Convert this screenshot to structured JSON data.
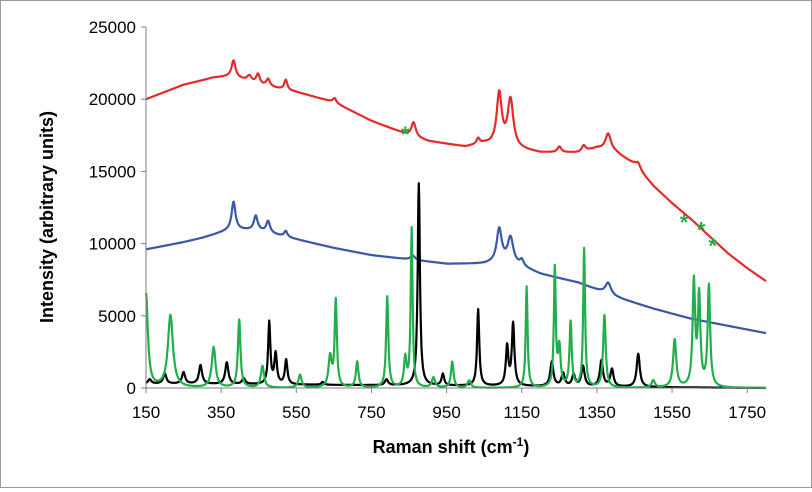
{
  "chart_data": {
    "type": "line",
    "xlabel": "Raman shift (cm",
    "xlabel_sup": "-1",
    "xlabel_end": ")",
    "ylabel": "Intensity (arbitrary units)",
    "xlim": [
      150,
      1800
    ],
    "ylim": [
      0,
      25000
    ],
    "grid": false,
    "legend": "none",
    "x_ticks": [
      150,
      350,
      550,
      750,
      950,
      1150,
      1350,
      1550,
      1750
    ],
    "x_tick_labels": [
      "150",
      "350",
      "550",
      "750",
      "950",
      "1150",
      "1350",
      "1550",
      "1750"
    ],
    "y_ticks": [
      0,
      5000,
      10000,
      15000,
      20000,
      25000
    ],
    "y_tick_labels": [
      "0",
      "5000",
      "10000",
      "15000",
      "20000",
      "25000"
    ],
    "series": [
      {
        "color": "#e32b2b",
        "baseline": [
          [
            150,
            20000
          ],
          [
            250,
            21000
          ],
          [
            330,
            21500
          ],
          [
            380,
            21600
          ],
          [
            450,
            21000
          ],
          [
            550,
            20500
          ],
          [
            650,
            19800
          ],
          [
            750,
            18500
          ],
          [
            850,
            17500
          ],
          [
            900,
            17100
          ],
          [
            950,
            16900
          ],
          [
            1000,
            16700
          ],
          [
            1050,
            16900
          ],
          [
            1150,
            16500
          ],
          [
            1200,
            16300
          ],
          [
            1300,
            16300
          ],
          [
            1350,
            16600
          ],
          [
            1400,
            16300
          ],
          [
            1450,
            15500
          ],
          [
            1500,
            14000
          ],
          [
            1550,
            12800
          ],
          [
            1600,
            11700
          ],
          [
            1650,
            10500
          ],
          [
            1700,
            9300
          ],
          [
            1750,
            8300
          ],
          [
            1800,
            7400
          ]
        ],
        "peaks": [
          [
            383,
            1100,
            6
          ],
          [
            425,
            400,
            7
          ],
          [
            448,
            700,
            6
          ],
          [
            475,
            500,
            6
          ],
          [
            522,
            700,
            5
          ],
          [
            652,
            300,
            5
          ],
          [
            862,
            1000,
            7
          ],
          [
            1034,
            400,
            5
          ],
          [
            1090,
            3600,
            8
          ],
          [
            1120,
            3300,
            9
          ],
          [
            1250,
            400,
            6
          ],
          [
            1315,
            400,
            6
          ],
          [
            1380,
            1200,
            9
          ],
          [
            1460,
            400,
            7
          ]
        ]
      },
      {
        "color": "#3a57a8",
        "baseline": [
          [
            150,
            9600
          ],
          [
            250,
            10100
          ],
          [
            300,
            10400
          ],
          [
            380,
            11000
          ],
          [
            450,
            10900
          ],
          [
            550,
            10300
          ],
          [
            650,
            9700
          ],
          [
            750,
            9200
          ],
          [
            850,
            8900
          ],
          [
            950,
            8600
          ],
          [
            1050,
            8600
          ],
          [
            1100,
            8700
          ],
          [
            1150,
            8400
          ],
          [
            1200,
            7900
          ],
          [
            1300,
            7300
          ],
          [
            1400,
            6300
          ],
          [
            1500,
            5500
          ],
          [
            1600,
            4800
          ],
          [
            1700,
            4300
          ],
          [
            1800,
            3800
          ]
        ],
        "peaks": [
          [
            383,
            1900,
            6
          ],
          [
            442,
            1000,
            6
          ],
          [
            475,
            800,
            6
          ],
          [
            522,
            400,
            5
          ],
          [
            860,
            300,
            7
          ],
          [
            1090,
            2300,
            8
          ],
          [
            1120,
            1800,
            9
          ],
          [
            1150,
            400,
            6
          ],
          [
            1380,
            800,
            9
          ]
        ]
      },
      {
        "color": "#000000",
        "baseline": [
          [
            150,
            300
          ],
          [
            1800,
            0
          ]
        ],
        "peaks": [
          [
            160,
            300,
            5
          ],
          [
            200,
            700,
            5
          ],
          [
            250,
            800,
            5
          ],
          [
            295,
            1300,
            5
          ],
          [
            365,
            1500,
            5
          ],
          [
            410,
            400,
            5
          ],
          [
            478,
            4300,
            3.5
          ],
          [
            495,
            2100,
            4
          ],
          [
            523,
            1700,
            4
          ],
          [
            620,
            200,
            4
          ],
          [
            790,
            400,
            5
          ],
          [
            876,
            14000,
            3.5
          ],
          [
            940,
            800,
            4
          ],
          [
            1034,
            5300,
            3.5
          ],
          [
            1111,
            2700,
            4
          ],
          [
            1127,
            4300,
            4
          ],
          [
            1230,
            1700,
            5
          ],
          [
            1260,
            900,
            5
          ],
          [
            1288,
            800,
            5
          ],
          [
            1313,
            1400,
            5
          ],
          [
            1362,
            1800,
            5
          ],
          [
            1390,
            1200,
            5
          ],
          [
            1460,
            2300,
            5
          ]
        ]
      },
      {
        "color": "#22ae4d",
        "baseline": [
          [
            150,
            0
          ],
          [
            1800,
            0
          ]
        ],
        "peaks": [
          [
            150,
            6500,
            6
          ],
          [
            215,
            5000,
            8
          ],
          [
            330,
            2800,
            6
          ],
          [
            398,
            4700,
            4
          ],
          [
            460,
            1500,
            5
          ],
          [
            560,
            900,
            5
          ],
          [
            640,
            2100,
            5
          ],
          [
            655,
            6000,
            3.5
          ],
          [
            712,
            1800,
            4
          ],
          [
            792,
            6300,
            3.5
          ],
          [
            840,
            2000,
            4
          ],
          [
            857,
            11000,
            3
          ],
          [
            915,
            700,
            5
          ],
          [
            965,
            1800,
            4
          ],
          [
            1010,
            500,
            5
          ],
          [
            1163,
            7000,
            3
          ],
          [
            1238,
            8200,
            3
          ],
          [
            1250,
            2700,
            4
          ],
          [
            1280,
            4500,
            3.5
          ],
          [
            1316,
            9600,
            3
          ],
          [
            1370,
            5000,
            4
          ],
          [
            1500,
            500,
            5
          ],
          [
            1557,
            3300,
            5
          ],
          [
            1608,
            7200,
            4
          ],
          [
            1622,
            6200,
            4
          ],
          [
            1648,
            7000,
            4
          ]
        ]
      }
    ],
    "annotations": [
      {
        "text": "*",
        "x": 840,
        "y": 18000,
        "color": "#22ae4d"
      },
      {
        "text": "*",
        "x": 1582,
        "y": 11900,
        "color": "#22ae4d"
      },
      {
        "text": "*",
        "x": 1627,
        "y": 11400,
        "color": "#22ae4d"
      },
      {
        "text": "*",
        "x": 1658,
        "y": 10300,
        "color": "#22ae4d"
      }
    ]
  }
}
